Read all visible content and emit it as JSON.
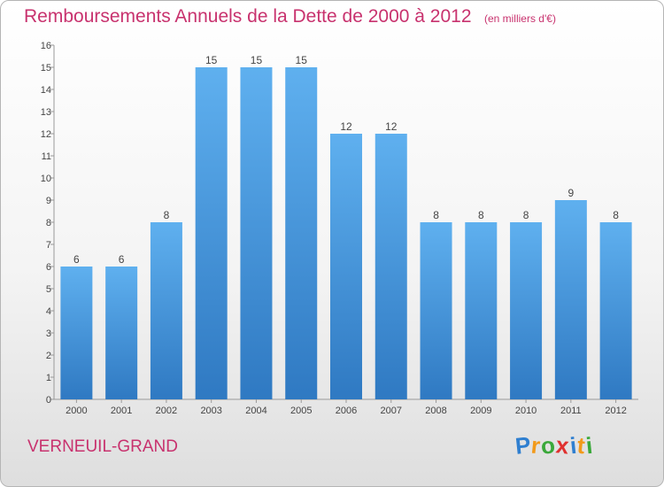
{
  "chart_data": {
    "type": "bar",
    "title": "Remboursements Annuels de la Dette de 2000 à 2012",
    "subtitle": "(en milliers d'€)",
    "categories": [
      "2000",
      "2001",
      "2002",
      "2003",
      "2004",
      "2005",
      "2006",
      "2007",
      "2008",
      "2009",
      "2010",
      "2011",
      "2012"
    ],
    "values": [
      6,
      6,
      8,
      15,
      15,
      15,
      12,
      12,
      8,
      8,
      8,
      9,
      8
    ],
    "ylim": [
      0,
      16
    ],
    "yticks": [
      0,
      1,
      2,
      3,
      4,
      5,
      6,
      7,
      8,
      9,
      10,
      11,
      12,
      13,
      14,
      15,
      16
    ],
    "grid": false,
    "bar_color": "#3d8fd8"
  },
  "commune": "VERNEUIL-GRAND",
  "logo": {
    "letters": [
      "P",
      "r",
      "o",
      "x",
      "i",
      "t",
      "i"
    ],
    "colors": [
      "#2f7fd0",
      "#f29a1a",
      "#3aa83a",
      "#e0312f",
      "#2f7fd0",
      "#f29a1a",
      "#3aa83a"
    ]
  },
  "title_color": "#c8326e"
}
